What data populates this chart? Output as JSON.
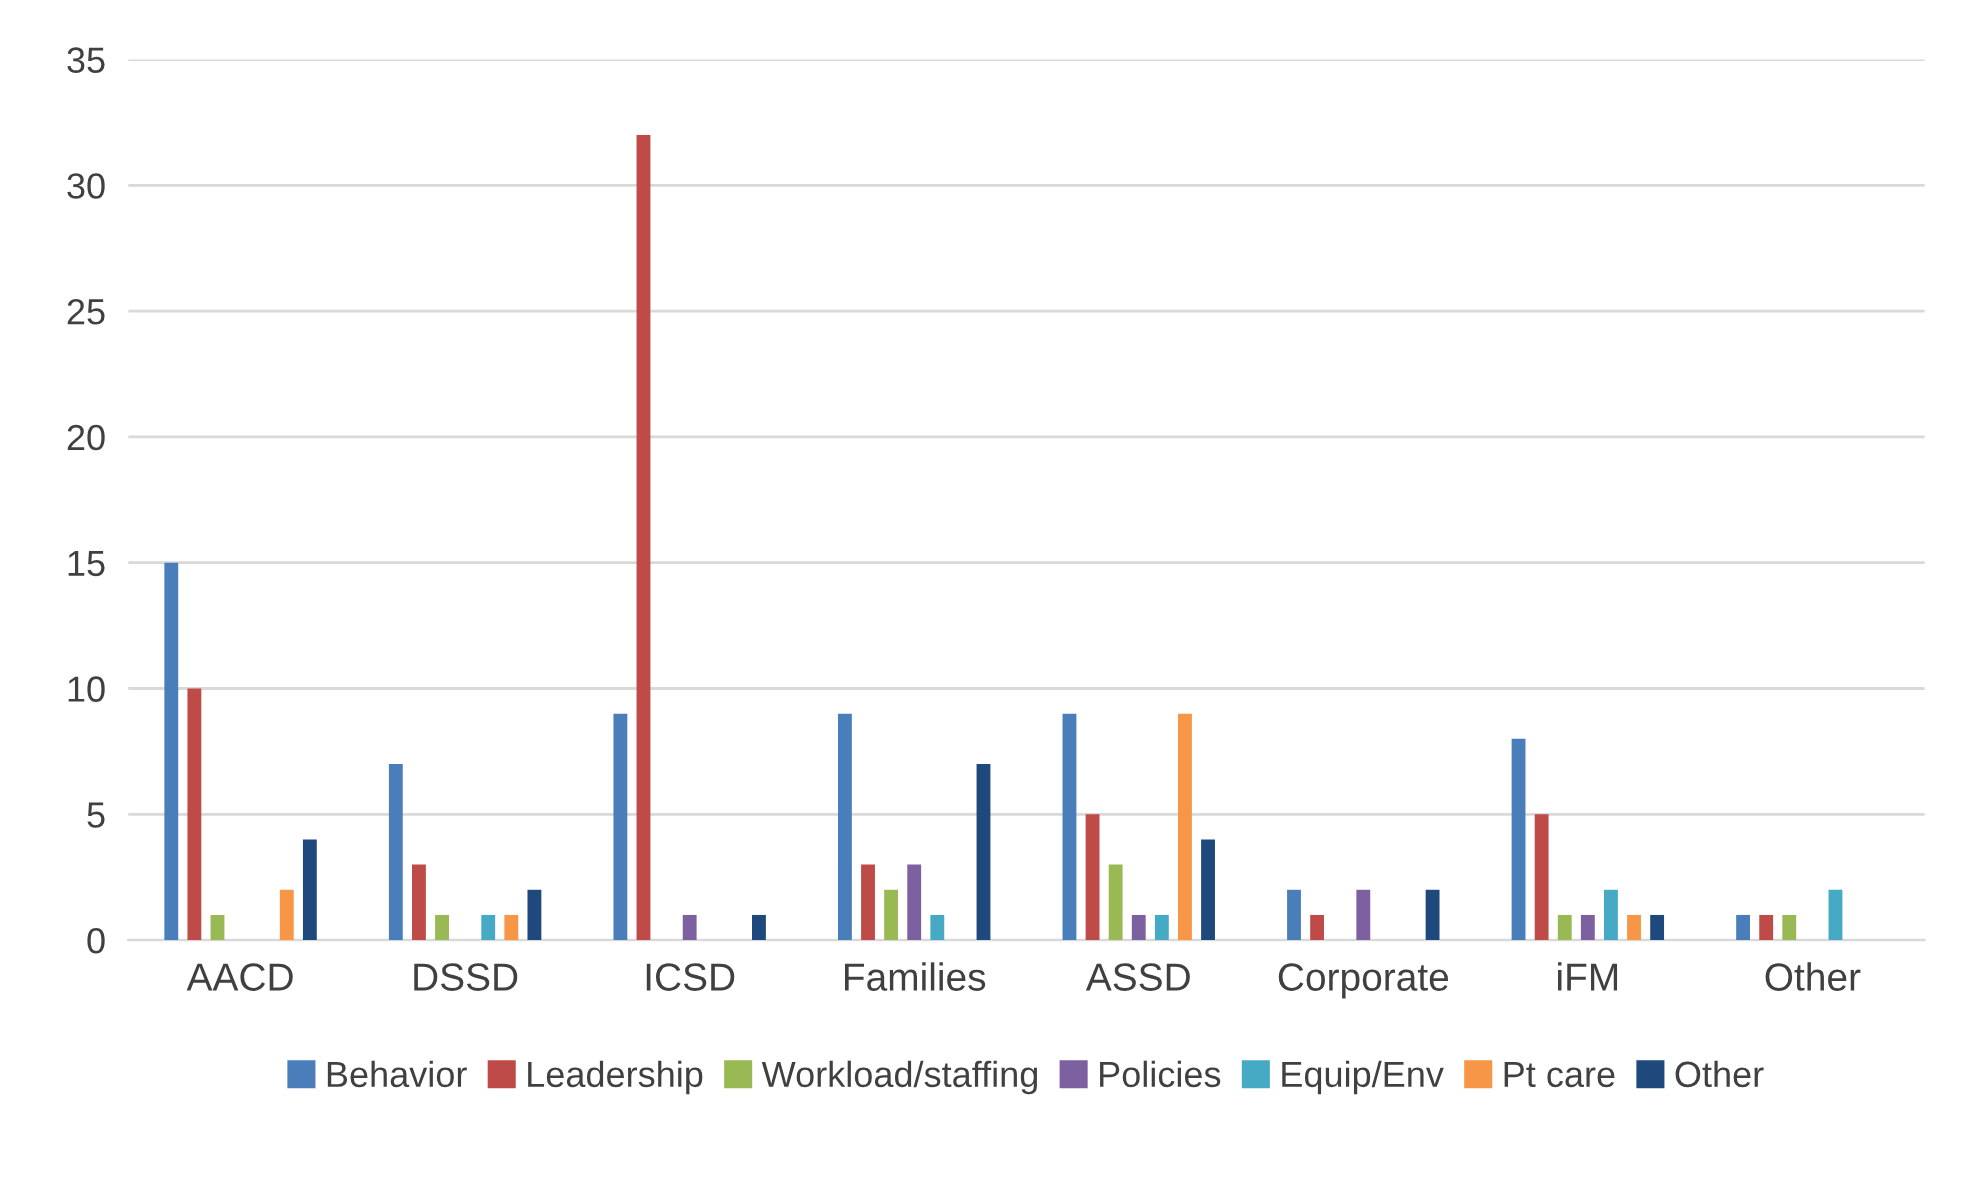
{
  "chart_data": {
    "type": "bar",
    "categories": [
      "AACD",
      "DSSD",
      "ICSD",
      "Families",
      "ASSD",
      "Corporate",
      "iFM",
      "Other"
    ],
    "series": [
      {
        "name": "Behavior",
        "color": "#4a7ebb",
        "values": [
          15,
          7,
          9,
          9,
          9,
          2,
          8,
          1
        ]
      },
      {
        "name": "Leadership",
        "color": "#be4b48",
        "values": [
          10,
          3,
          32,
          3,
          5,
          1,
          5,
          1
        ]
      },
      {
        "name": "Workload/staffing",
        "color": "#98b954",
        "values": [
          1,
          1,
          0,
          2,
          3,
          0,
          1,
          1
        ]
      },
      {
        "name": "Policies",
        "color": "#7d60a0",
        "values": [
          0,
          0,
          1,
          3,
          1,
          2,
          1,
          0
        ]
      },
      {
        "name": "Equip/Env",
        "color": "#46aac5",
        "values": [
          0,
          1,
          0,
          1,
          1,
          0,
          2,
          2
        ]
      },
      {
        "name": "Pt care",
        "color": "#f79646",
        "values": [
          2,
          1,
          0,
          0,
          9,
          0,
          1,
          0
        ]
      },
      {
        "name": "Other",
        "color": "#1f497d",
        "values": [
          4,
          2,
          1,
          7,
          4,
          2,
          1,
          0
        ]
      }
    ],
    "ylim": [
      0,
      35
    ],
    "yticks": [
      0,
      5,
      10,
      15,
      20,
      25,
      30,
      35
    ],
    "grid": "y",
    "legend": "bottom"
  }
}
